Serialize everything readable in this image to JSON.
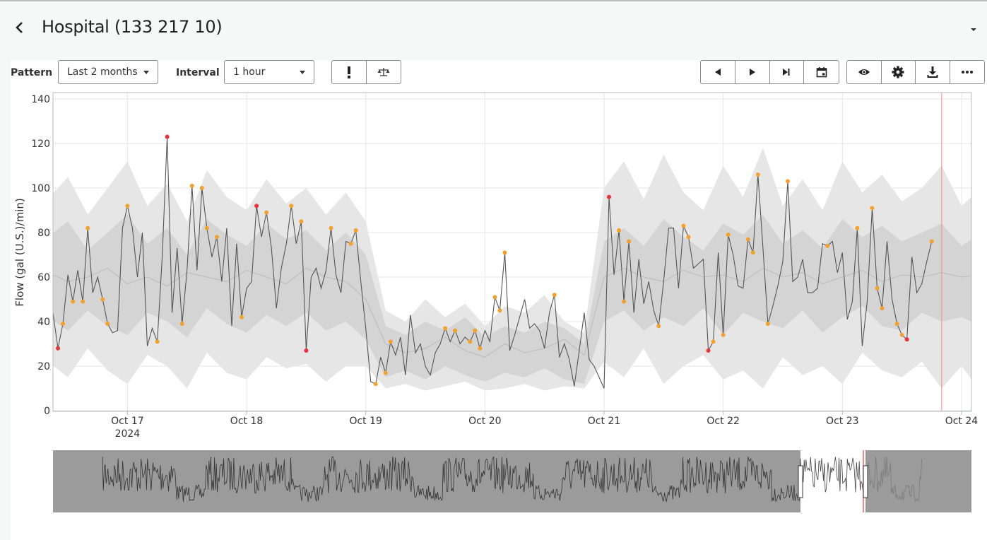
{
  "header": {
    "back_icon": "chevron-left-icon",
    "title": "Hospital (133 217 10)",
    "menu_icon": "caret-down-icon"
  },
  "toolbar": {
    "pattern_label": "Pattern",
    "pattern_value": "Last 2 months",
    "interval_label": "Interval",
    "interval_value": "1 hour",
    "tool_buttons": [
      {
        "icon": "exclamation-icon"
      },
      {
        "icon": "balance-scale-icon"
      }
    ],
    "nav_buttons": [
      {
        "icon": "step-back-icon"
      },
      {
        "icon": "play-forward-icon"
      },
      {
        "icon": "skip-to-end-icon"
      },
      {
        "icon": "calendar-icon"
      }
    ],
    "view_buttons": [
      {
        "icon": "eye-icon"
      },
      {
        "icon": "gear-icon"
      },
      {
        "icon": "download-icon"
      },
      {
        "icon": "more-horizontal-icon"
      }
    ]
  },
  "chart_data": {
    "type": "line",
    "ylabel": "Flow (gal (U.S.)/min)",
    "ylim": [
      0,
      140
    ],
    "yticks": [
      "0",
      "20",
      "40",
      "60",
      "80",
      "100",
      "120",
      "140"
    ],
    "xlim": [
      "2024-10-16T09:00",
      "2024-10-24T02:00"
    ],
    "xticks": [
      {
        "label": "Oct 17",
        "sub": "2024",
        "t": "2024-10-17T00:00"
      },
      {
        "label": "Oct 18",
        "t": "2024-10-18T00:00"
      },
      {
        "label": "Oct 19",
        "t": "2024-10-19T00:00"
      },
      {
        "label": "Oct 20",
        "t": "2024-10-20T00:00"
      },
      {
        "label": "Oct 21",
        "t": "2024-10-21T00:00"
      },
      {
        "label": "Oct 22",
        "t": "2024-10-22T00:00"
      },
      {
        "label": "Oct 23",
        "t": "2024-10-23T00:00"
      },
      {
        "label": "Oct 24",
        "t": "2024-10-24T00:00"
      }
    ],
    "grid": true,
    "now_marker": "2024-10-23T20:00",
    "colors": {
      "line": "#555555",
      "median": "#bbbbbb",
      "outer_band": "#e6e6e6",
      "inner_band": "#d4d4d4",
      "warning": "#f2a12e",
      "alarm": "#e8323c",
      "now": "#f28b8b"
    },
    "series": {
      "start": "2024-10-16T09:00",
      "step_hours": 1,
      "values": [
        44,
        28,
        39,
        61,
        49,
        63,
        49,
        82,
        53,
        60,
        50,
        39,
        35,
        36,
        82,
        92,
        82,
        60,
        80,
        29,
        37,
        31,
        69,
        123,
        44,
        73,
        39,
        63,
        101,
        63,
        100,
        82,
        69,
        78,
        58,
        82,
        38,
        75,
        42,
        55,
        58,
        92,
        78,
        89,
        73,
        46,
        64,
        75,
        92,
        75,
        85,
        27,
        60,
        64,
        55,
        63,
        82,
        61,
        53,
        76,
        75,
        81,
        58,
        37,
        13,
        12,
        24,
        17,
        31,
        25,
        33,
        16,
        43,
        26,
        30,
        20,
        16,
        26,
        30,
        37,
        31,
        36,
        30,
        33,
        31,
        36,
        28,
        36,
        31,
        51,
        45,
        71,
        27,
        34,
        42,
        50,
        37,
        39,
        36,
        28,
        44,
        52,
        24,
        30,
        23,
        11,
        27,
        44,
        23,
        20,
        15,
        10,
        96,
        61,
        81,
        49,
        76,
        44,
        68,
        48,
        58,
        45,
        38,
        58,
        82,
        82,
        55,
        83,
        78,
        64,
        66,
        68,
        27,
        31,
        71,
        34,
        79,
        70,
        56,
        55,
        77,
        71,
        106,
        73,
        39,
        47,
        56,
        67,
        103,
        58,
        60,
        68,
        53,
        53,
        55,
        75,
        74,
        76,
        62,
        71,
        41,
        49,
        82,
        29,
        49,
        91,
        55,
        46,
        76,
        50,
        39,
        34,
        32,
        69,
        53,
        57,
        67,
        76
      ],
      "warning_points": [
        2,
        4,
        6,
        7,
        10,
        11,
        15,
        21,
        26,
        28,
        30,
        31,
        33,
        38,
        43,
        48,
        50,
        56,
        60,
        61,
        65,
        67,
        68,
        79,
        81,
        84,
        85,
        86,
        89,
        90,
        91,
        101,
        114,
        115,
        116,
        122,
        127,
        128,
        133,
        135,
        136,
        140,
        141,
        142,
        144,
        148,
        156,
        162,
        165,
        166,
        167,
        170,
        171,
        177
      ],
      "alarm_points": [
        1,
        23,
        41,
        51,
        112,
        132,
        172
      ]
    },
    "bands": {
      "start": "2024-10-16T08:00",
      "step_hours": 4,
      "median": [
        62,
        58,
        60,
        64,
        57,
        60,
        56,
        62,
        60,
        58,
        63,
        60,
        57,
        64,
        60,
        58,
        50,
        30,
        26,
        28,
        33,
        27,
        24,
        30,
        26,
        28,
        32,
        25,
        60,
        64,
        60,
        58,
        63,
        60,
        61,
        58,
        64,
        60,
        62,
        57,
        60,
        63,
        58,
        61,
        60,
        62,
        60,
        61
      ],
      "inner_lower": [
        42,
        36,
        45,
        38,
        34,
        44,
        40,
        33,
        46,
        39,
        35,
        43,
        38,
        44,
        36,
        40,
        32,
        15,
        18,
        14,
        20,
        16,
        13,
        17,
        15,
        19,
        14,
        12,
        40,
        45,
        36,
        42,
        38,
        46,
        34,
        44,
        40,
        37,
        45,
        35,
        42,
        47,
        38,
        36,
        44,
        40,
        42,
        38
      ],
      "inner_upper": [
        78,
        85,
        72,
        80,
        88,
        75,
        82,
        70,
        86,
        79,
        74,
        84,
        77,
        81,
        72,
        80,
        70,
        38,
        34,
        40,
        36,
        42,
        33,
        38,
        35,
        40,
        37,
        30,
        76,
        82,
        74,
        86,
        78,
        72,
        84,
        79,
        88,
        75,
        81,
        73,
        86,
        78,
        83,
        76,
        80,
        84,
        74,
        80
      ],
      "outer_lower": [
        22,
        15,
        28,
        18,
        12,
        25,
        20,
        10,
        26,
        17,
        14,
        24,
        19,
        21,
        13,
        20,
        20,
        10,
        12,
        9,
        11,
        13,
        9,
        10,
        12,
        9,
        11,
        10,
        22,
        15,
        28,
        12,
        20,
        25,
        14,
        18,
        10,
        24,
        16,
        20,
        12,
        26,
        18,
        15,
        22,
        10,
        20,
        8
      ],
      "outer_upper": [
        95,
        105,
        88,
        100,
        112,
        92,
        102,
        85,
        108,
        96,
        90,
        104,
        93,
        100,
        88,
        98,
        85,
        45,
        40,
        50,
        42,
        48,
        38,
        47,
        44,
        52,
        40,
        35,
        100,
        112,
        95,
        115,
        98,
        90,
        110,
        96,
        118,
        92,
        104,
        90,
        112,
        98,
        106,
        94,
        100,
        110,
        92,
        100
      ]
    },
    "navigator": {
      "span": "Last 2 months",
      "selected_range": [
        "2024-10-16T09:00",
        "2024-10-24T02:00"
      ]
    }
  }
}
